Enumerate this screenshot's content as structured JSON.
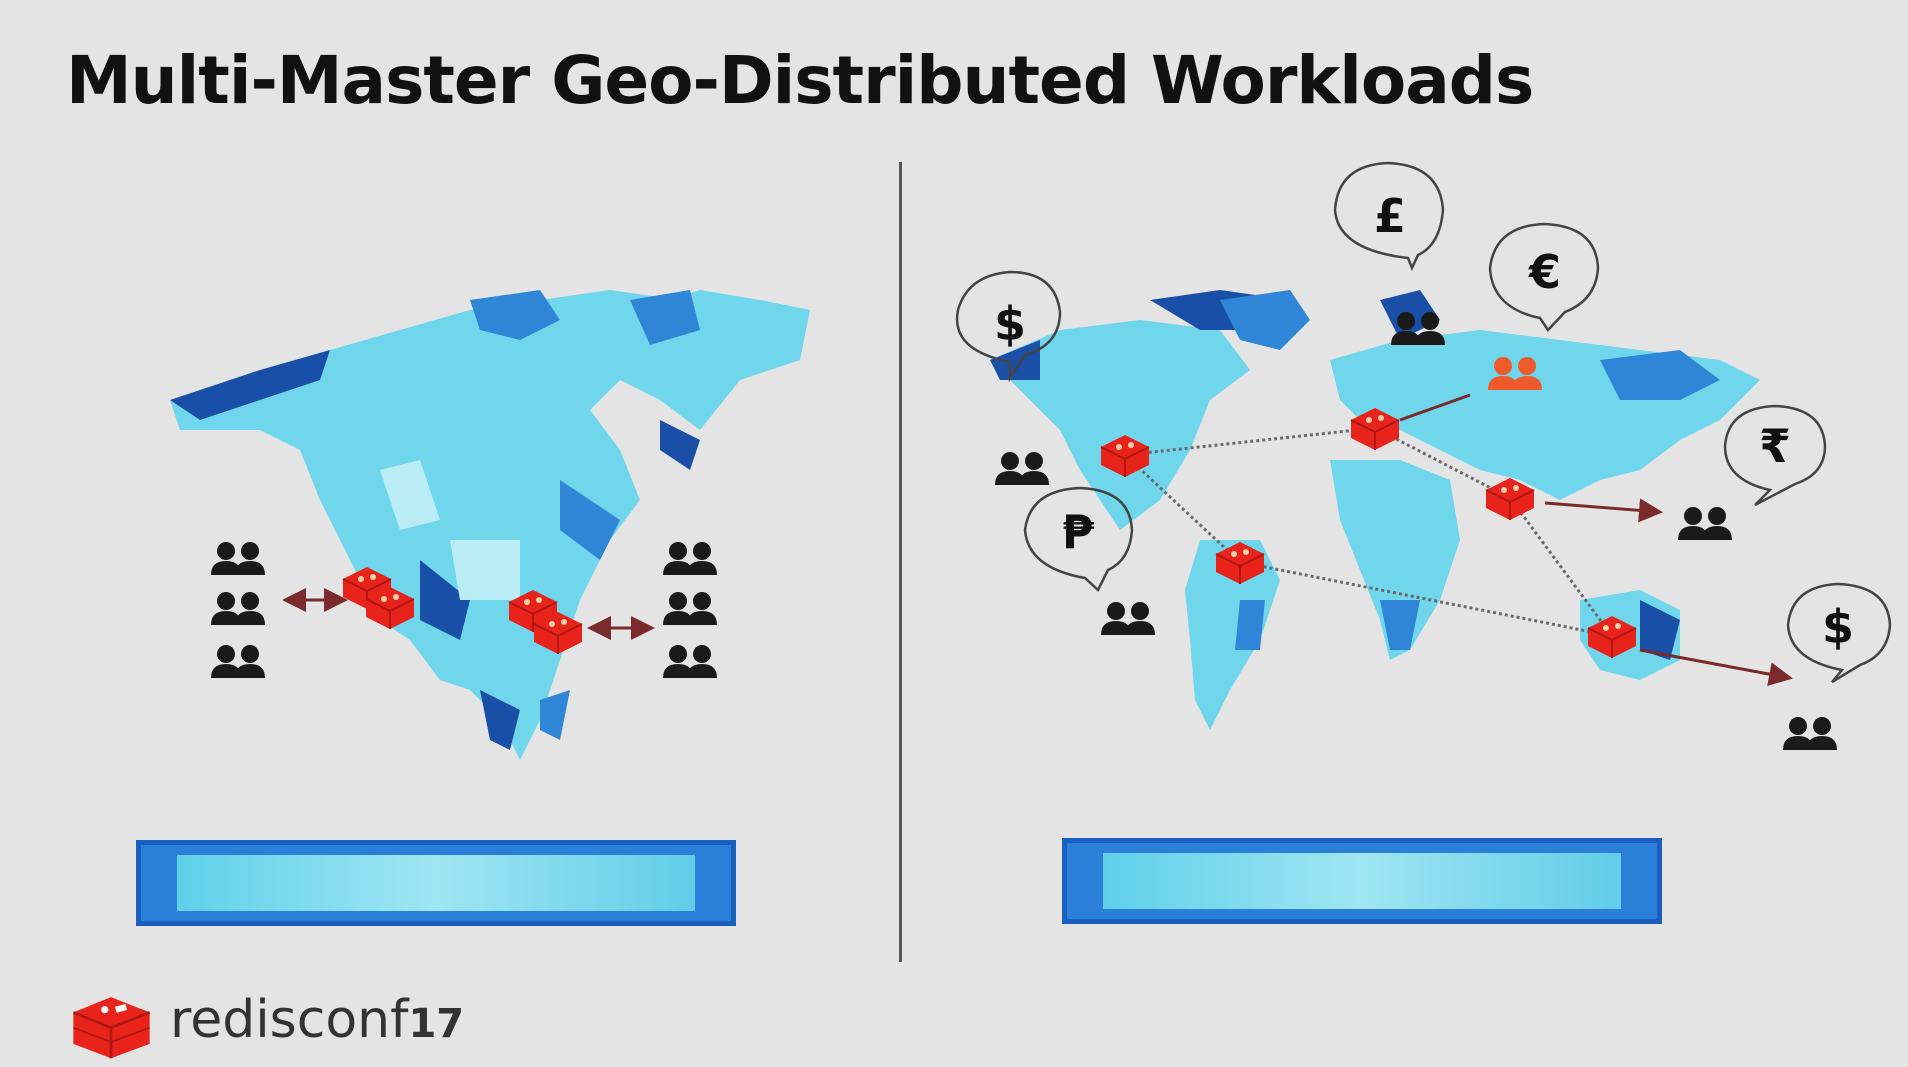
{
  "slide": {
    "title": "Multi-Master Geo-Distributed Workloads",
    "left_caption": "",
    "right_caption": ""
  },
  "currencies": {
    "pound": "£",
    "euro": "€",
    "dollar_americas": "$",
    "rupee": "₹",
    "peso": "₱",
    "dollar_oceania": "$"
  },
  "logo": {
    "brand": "redisconf",
    "year": "17"
  },
  "colors": {
    "map_dark": "#1a4fa8",
    "map_mid": "#2f86d6",
    "map_light": "#6fd6ec",
    "node_red": "#e8231c",
    "people": "#1a1a1a",
    "people_orange": "#ef5a2a",
    "arrow": "#7a2a2a"
  },
  "icons": [
    "redis-node-icon",
    "people-group-icon",
    "speech-bubble-icon",
    "redis-logo-icon"
  ]
}
